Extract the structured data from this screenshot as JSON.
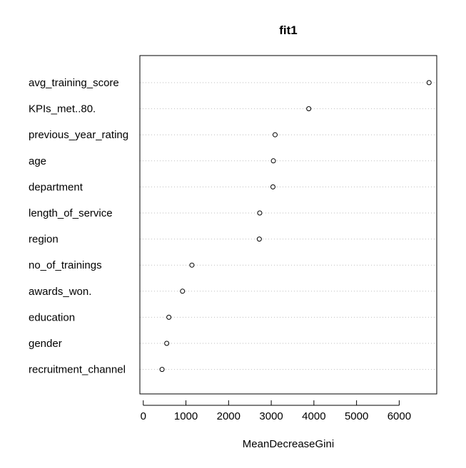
{
  "chart_data": {
    "type": "scatter",
    "subtype": "dotchart",
    "title": "fit1",
    "xlabel": "MeanDecreaseGini",
    "ylabel": "",
    "xlim": [
      -80,
      6880
    ],
    "xticks": [
      0,
      1000,
      2000,
      3000,
      4000,
      5000,
      6000
    ],
    "xtick_labels": [
      "0",
      "1000",
      "2000",
      "3000",
      "4000",
      "5000",
      "6000"
    ],
    "grid": "horizontal dotted",
    "categories": [
      "avg_training_score",
      "KPIs_met..80.",
      "previous_year_rating",
      "age",
      "department",
      "length_of_service",
      "region",
      "no_of_trainings",
      "awards_won.",
      "education",
      "gender",
      "recruitment_channel"
    ],
    "values": [
      6700,
      3880,
      3090,
      3050,
      3040,
      2730,
      2720,
      1140,
      920,
      600,
      550,
      440
    ],
    "colors": {
      "axis": "#000000",
      "grid": "#bebebe",
      "marker_stroke": "#000000",
      "marker_fill": "#ffffff"
    }
  }
}
